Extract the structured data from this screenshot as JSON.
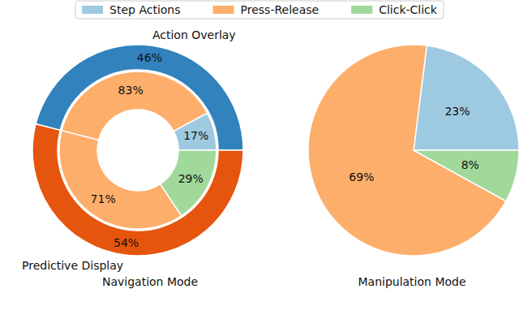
{
  "chart_data": [
    {
      "type": "nested_pie",
      "title": "Navigation Mode",
      "categories": [
        "Action Overlay",
        "Predictive Display"
      ],
      "values": [
        46,
        54
      ],
      "value_labels": [
        "46%",
        "54%"
      ],
      "colors": [
        "#3182bd",
        "#e6550d"
      ],
      "data_labels": true,
      "inner": [
        {
          "categories": [
            "Step Actions",
            "Press-Release"
          ],
          "values": [
            17,
            83
          ],
          "value_labels": [
            "17%",
            "83%"
          ]
        },
        {
          "categories": [
            "Press-Release",
            "Click-Click"
          ],
          "values": [
            71,
            29
          ],
          "value_labels": [
            "71%",
            "29%"
          ]
        }
      ]
    },
    {
      "type": "pie",
      "title": "Manipulation Mode",
      "categories": [
        "Step Actions",
        "Press-Release",
        "Click-Click"
      ],
      "values": [
        23,
        69,
        8
      ],
      "value_labels": [
        "23%",
        "69%",
        "8%"
      ],
      "colors": [
        "#9ecae1",
        "#fdae6b",
        "#a1d99b"
      ],
      "data_labels": true,
      "legend": "top"
    }
  ]
}
